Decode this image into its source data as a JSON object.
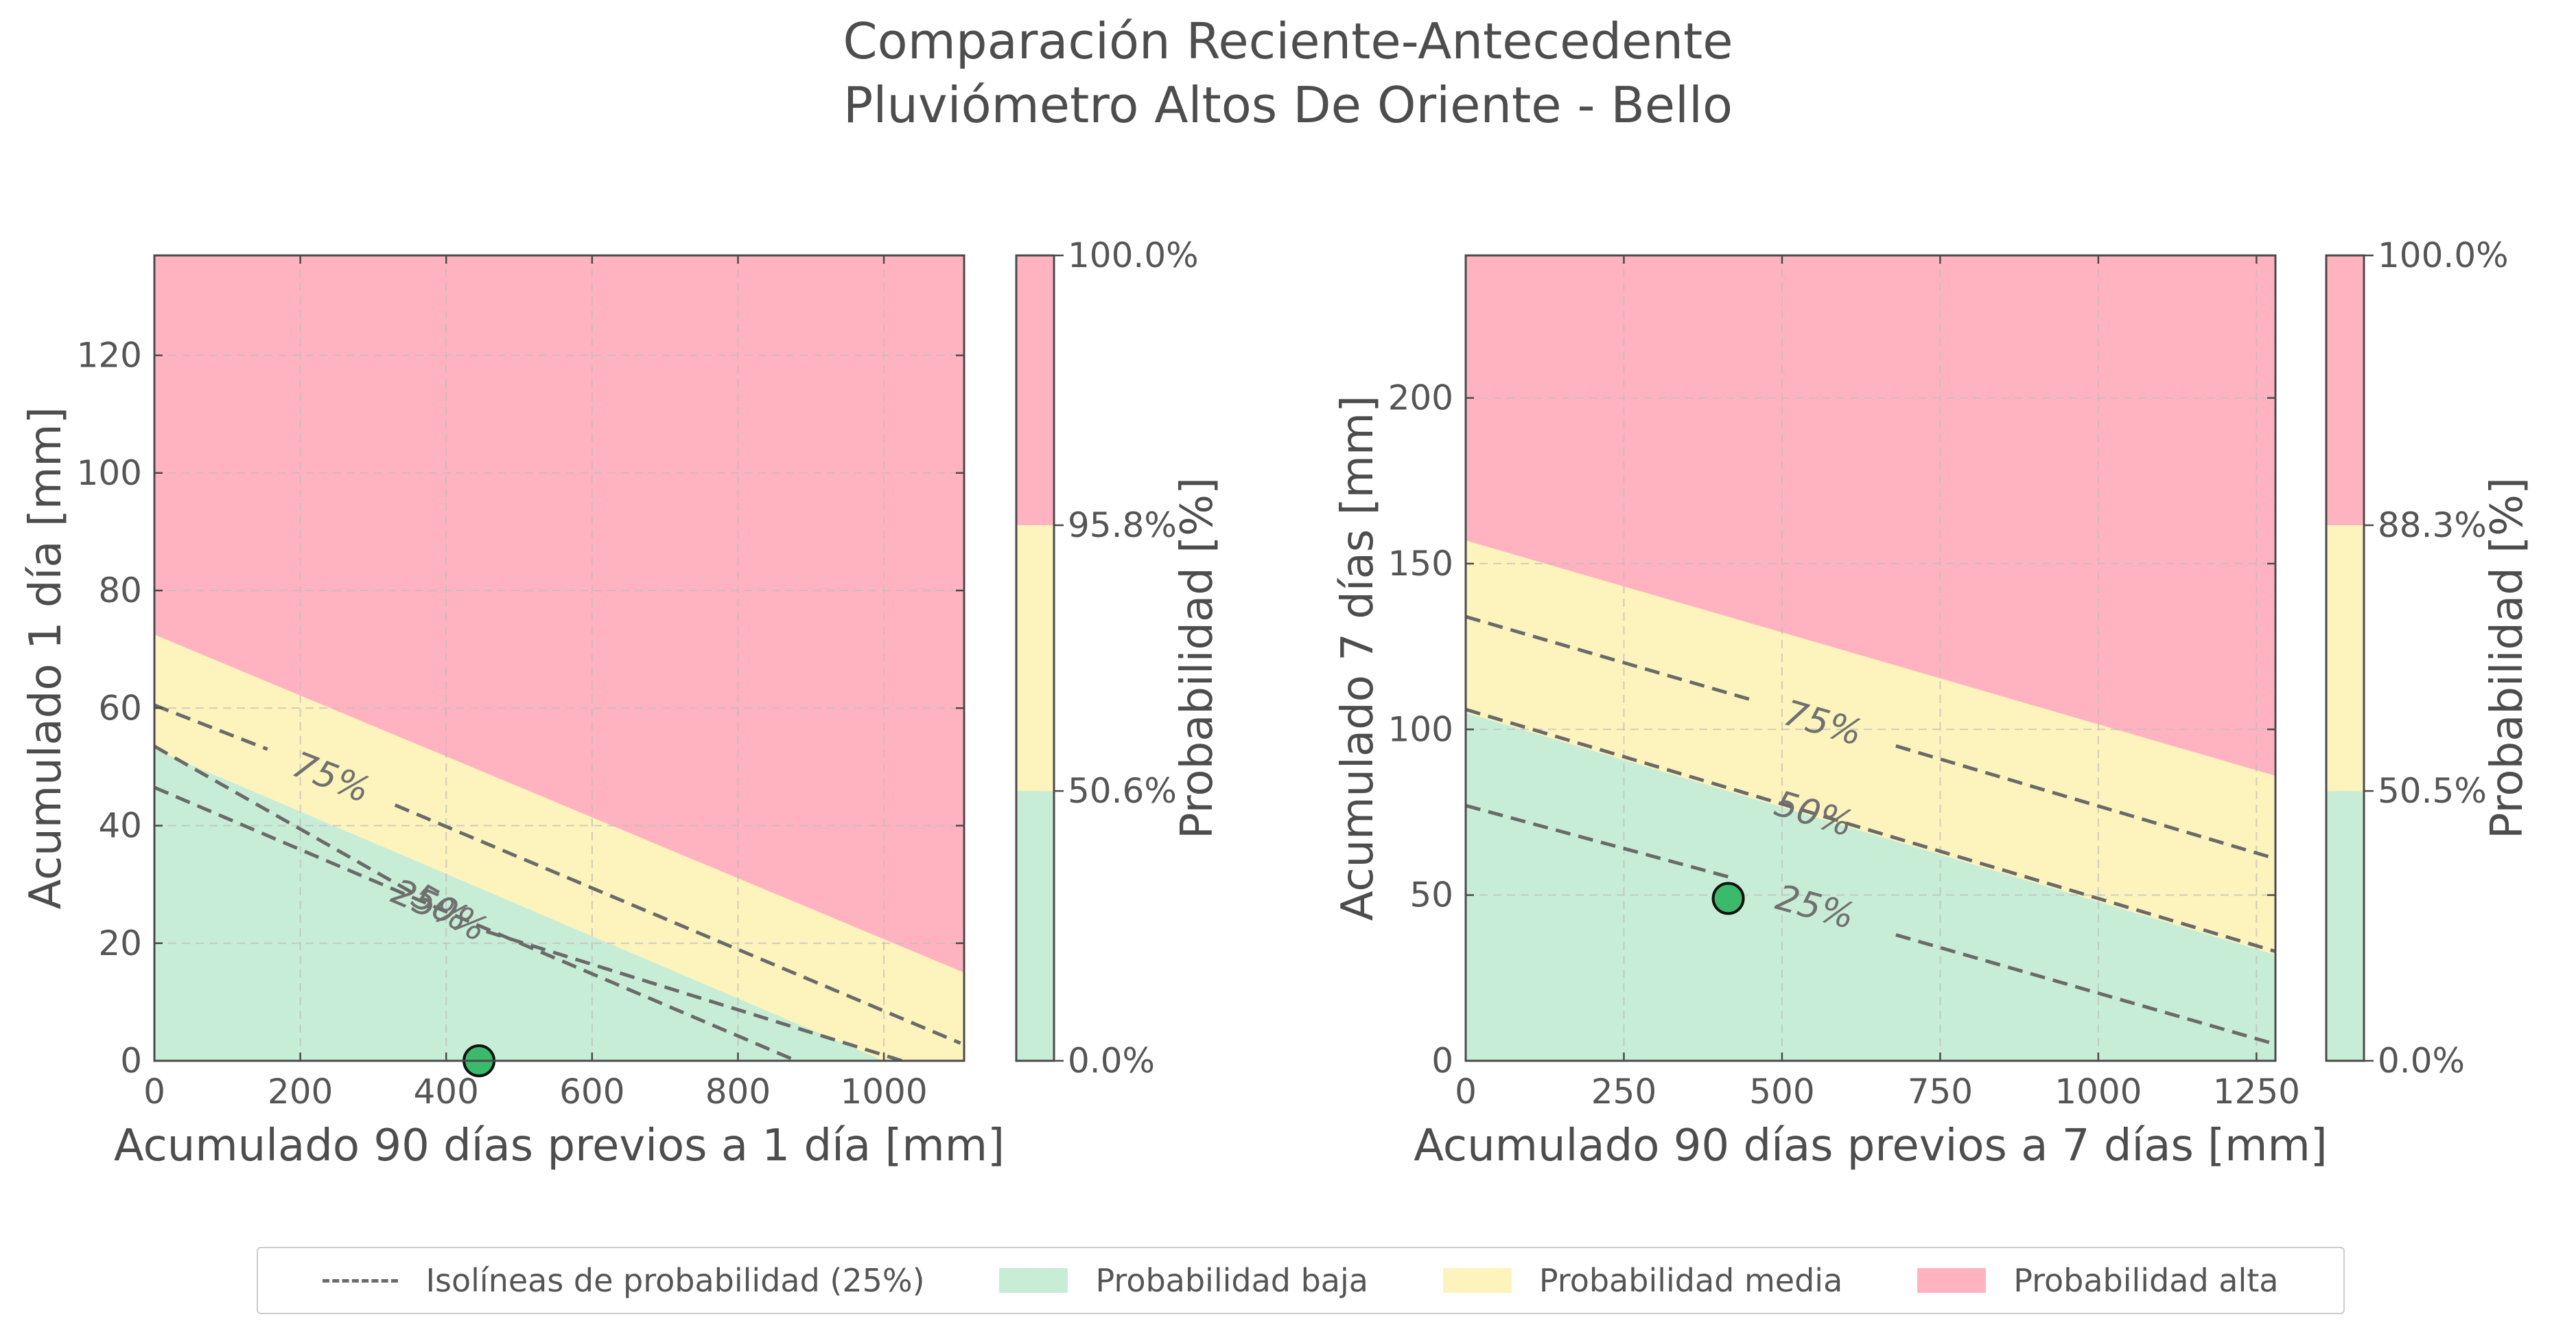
{
  "figure": {
    "title_line1": "Comparación Reciente-Antecedente",
    "title_line2": "Pluviómetro Altos De Oriente - Bello"
  },
  "colors": {
    "low": "#c8edd6",
    "medium": "#fdf3bd",
    "high": "#ffb3c1",
    "contour": "#6a6a6a",
    "point_fill": "#3cba6b"
  },
  "chart_data": [
    {
      "type": "area",
      "title": "",
      "xlabel": "Acumulado 90 días previos a 1 día [mm]",
      "ylabel": "Acumulado 1 día [mm]",
      "xlim": [
        0,
        1110
      ],
      "ylim": [
        0,
        137
      ],
      "xticks": [
        0,
        200,
        400,
        600,
        800,
        1000
      ],
      "yticks": [
        0,
        20,
        40,
        60,
        80,
        100,
        120
      ],
      "grid": true,
      "regions": {
        "low_upper": [
          [
            0,
            53
          ],
          [
            1000,
            0
          ]
        ],
        "medium_upper": [
          [
            0,
            72.5
          ],
          [
            1110,
            15
          ]
        ]
      },
      "isolines": [
        {
          "label": "25%",
          "segments": [
            [
              [
                0,
                46.5
              ],
              [
                880,
                0
              ]
            ]
          ]
        },
        {
          "label": "50%",
          "segments": [
            [
              [
                0,
                53.5
              ],
              [
                355,
                28.5
              ]
            ],
            [
              [
                455,
                22
              ],
              [
                1025,
                0
              ]
            ]
          ]
        },
        {
          "label": "75%",
          "segments": [
            [
              [
                0,
                60.5
              ],
              [
                155,
                53
              ]
            ],
            [
              [
                330,
                43.5
              ],
              [
                1105,
                3
              ]
            ]
          ]
        }
      ],
      "current_point": {
        "x": 445,
        "y": 0
      },
      "colorbar": {
        "label": "Probabilidad [%]",
        "ticks": [
          "0.0%",
          "50.6%",
          "95.8%",
          "100.0%"
        ],
        "bounds": [
          0,
          0.335,
          0.665,
          1
        ]
      }
    },
    {
      "type": "area",
      "title": "",
      "xlabel": "Acumulado 90 días previos a 7 días [mm]",
      "ylabel": "Acumulado 7 días [mm]",
      "xlim": [
        0,
        1280
      ],
      "ylim": [
        0,
        243
      ],
      "xticks": [
        0,
        250,
        500,
        750,
        1000,
        1250
      ],
      "yticks": [
        0,
        50,
        100,
        150,
        200
      ],
      "grid": true,
      "regions": {
        "low_upper": [
          [
            0,
            105
          ],
          [
            1280,
            32
          ]
        ],
        "medium_upper": [
          [
            0,
            157
          ],
          [
            1280,
            86
          ]
        ]
      },
      "isolines": [
        {
          "label": "25%",
          "segments": [
            [
              [
                0,
                77
              ],
              [
                425,
                55
              ]
            ],
            [
              [
                680,
                38
              ],
              [
                1280,
                5
              ]
            ]
          ]
        },
        {
          "label": "50%",
          "segments": [
            [
              [
                0,
                106
              ],
              [
                1280,
                33
              ]
            ]
          ]
        },
        {
          "label": "75%",
          "segments": [
            [
              [
                0,
                134
              ],
              [
                450,
                109
              ]
            ],
            [
              [
                680,
                95
              ],
              [
                1280,
                61
              ]
            ]
          ]
        }
      ],
      "current_point": {
        "x": 415,
        "y": 49
      },
      "colorbar": {
        "label": "Probabilidad [%]",
        "ticks": [
          "0.0%",
          "50.5%",
          "88.3%",
          "100.0%"
        ],
        "bounds": [
          0,
          0.335,
          0.665,
          1
        ]
      }
    }
  ],
  "legend": {
    "isolines": "Isolíneas de probabilidad (25%)",
    "low": "Probabilidad baja",
    "medium": "Probabilidad media",
    "high": "Probabilidad alta"
  }
}
